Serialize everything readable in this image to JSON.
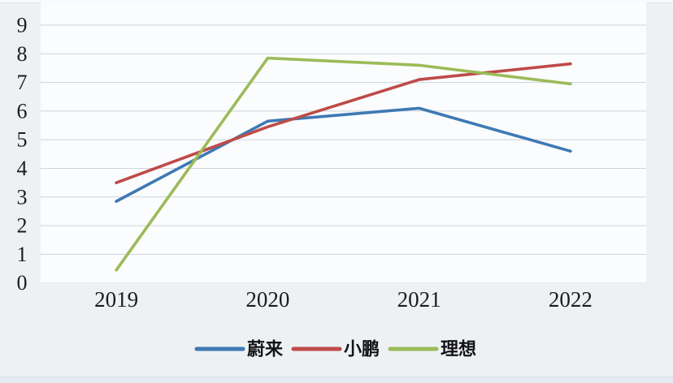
{
  "chart_data": {
    "type": "line",
    "title": "",
    "xlabel": "",
    "ylabel": "",
    "categories": [
      "2019",
      "2020",
      "2021",
      "2022"
    ],
    "series": [
      {
        "name": "蔚来",
        "color": "#3E79B4",
        "values": [
          2.85,
          5.65,
          6.1,
          4.6
        ]
      },
      {
        "name": "小鹏",
        "color": "#BE4B48",
        "values": [
          3.5,
          5.45,
          7.1,
          7.65
        ]
      },
      {
        "name": "理想",
        "color": "#9BBB59",
        "values": [
          0.45,
          7.85,
          7.6,
          6.95
        ]
      }
    ],
    "y_ticks": [
      0,
      1,
      2,
      3,
      4,
      5,
      6,
      7,
      8,
      9
    ],
    "ylim": [
      0,
      9
    ],
    "grid": true,
    "legend_position": "bottom"
  },
  "colors": {
    "gridline": "#ccd4db",
    "zero_gridline": "#e3e8ee",
    "plot_background": "#fbfcfd",
    "tick_text": "#1c1c1e"
  }
}
